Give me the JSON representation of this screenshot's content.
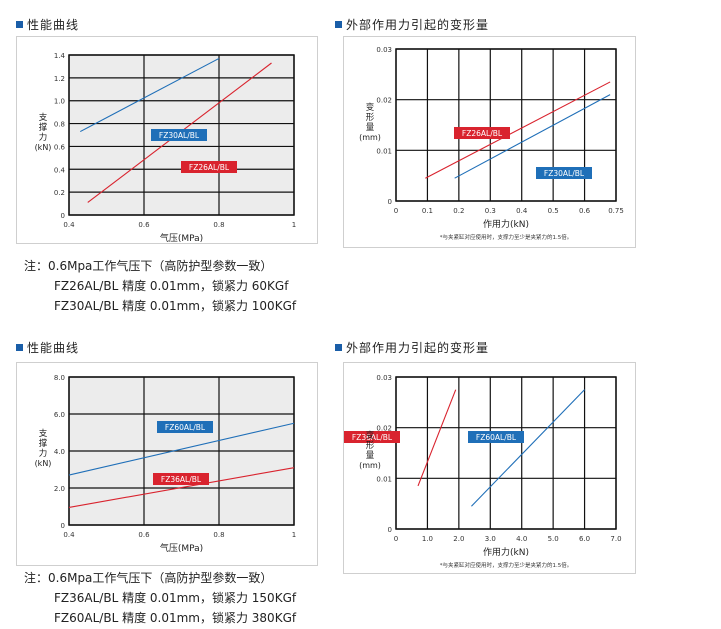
{
  "sections": {
    "s1_title": "性能曲线",
    "s2_title": "外部作用力引起的变形量",
    "s3_title": "性能曲线",
    "s4_title": "外部作用力引起的变形量"
  },
  "notes": {
    "top": {
      "line1": "注：0.6Mpa工作气压下（高防护型参数一致）",
      "line2": "FZ26AL/BL 精度 0.01mm，锁紧力 60KGf",
      "line3": "FZ30AL/BL 精度 0.01mm，锁紧力 100KGf"
    },
    "bottom": {
      "line1": "注：0.6Mpa工作气压下（高防护型参数一致）",
      "line2": "FZ36AL/BL 精度 0.01mm，锁紧力 150KGf",
      "line3": "FZ60AL/BL 精度 0.01mm，锁紧力 380KGf"
    }
  },
  "colors": {
    "blue": "#1f6fb8",
    "red": "#d9232e",
    "accent": "#1a5ea8",
    "grid": "#111111",
    "shade": "#ececec"
  },
  "chart_data": [
    {
      "type": "line",
      "xlabel": "气压(MPa)",
      "ylabel": "支撑力(kN)",
      "xticks": [
        "0.4",
        "0.6",
        "0.8",
        "1"
      ],
      "yticks": [
        "0",
        "0.2",
        "0.4",
        "0.6",
        "0.8",
        "1.0",
        "1.2",
        "1.4"
      ],
      "xlim": [
        0.4,
        1.0
      ],
      "ylim": [
        0,
        1.4
      ],
      "grid": true,
      "series": [
        {
          "name": "FZ30AL/BL",
          "color": "blue",
          "x": [
            0.43,
            0.8
          ],
          "y": [
            0.73,
            1.37
          ]
        },
        {
          "name": "FZ26AL/BL",
          "color": "red",
          "x": [
            0.45,
            0.94
          ],
          "y": [
            0.11,
            1.33
          ]
        }
      ]
    },
    {
      "type": "line",
      "xlabel": "作用力(kN)",
      "ylabel": "变形量(mm)",
      "xticks": [
        "0",
        "0.1",
        "0.2",
        "0.3",
        "0.4",
        "0.5",
        "0.6",
        "0.75"
      ],
      "yticks": [
        "0",
        "0.01",
        "0.02",
        "0.03"
      ],
      "xlim": [
        0,
        0.75
      ],
      "ylim": [
        0,
        0.03
      ],
      "grid": true,
      "footnote": "*与夹紧缸对应使用时，支撑力至少是夹紧力的1.5倍。",
      "series": [
        {
          "name": "FZ26AL/BL",
          "color": "red",
          "x": [
            0.1,
            0.73
          ],
          "y": [
            0.0045,
            0.0235
          ]
        },
        {
          "name": "FZ30AL/BL",
          "color": "blue",
          "x": [
            0.2,
            0.73
          ],
          "y": [
            0.0045,
            0.021
          ]
        }
      ]
    },
    {
      "type": "line",
      "xlabel": "气压(MPa)",
      "ylabel": "支撑力(kN)",
      "xticks": [
        "0.4",
        "0.6",
        "0.8",
        "1"
      ],
      "yticks": [
        "0",
        "2.0",
        "4.0",
        "6.0",
        "8.0"
      ],
      "xlim": [
        0.4,
        1.0
      ],
      "ylim": [
        0,
        8.0
      ],
      "grid": true,
      "series": [
        {
          "name": "FZ60AL/BL",
          "color": "blue",
          "x": [
            0.4,
            1.0
          ],
          "y": [
            2.7,
            5.5
          ]
        },
        {
          "name": "FZ36AL/BL",
          "color": "red",
          "x": [
            0.4,
            1.0
          ],
          "y": [
            0.95,
            3.1
          ]
        }
      ]
    },
    {
      "type": "line",
      "xlabel": "作用力(kN)",
      "ylabel": "变形量(mm)",
      "xticks": [
        "0",
        "1.0",
        "2.0",
        "3.0",
        "4.0",
        "5.0",
        "6.0",
        "7.0"
      ],
      "yticks": [
        "0",
        "0.01",
        "0.02",
        "0.03"
      ],
      "xlim": [
        0,
        7.0
      ],
      "ylim": [
        0,
        0.03
      ],
      "grid": true,
      "footnote": "*与夹紧缸对应使用时，支撑力至少是夹紧力的1.5倍。",
      "series": [
        {
          "name": "FZ36AL/BL",
          "color": "red",
          "x": [
            0.7,
            1.9
          ],
          "y": [
            0.0085,
            0.0275
          ]
        },
        {
          "name": "FZ60AL/BL",
          "color": "blue",
          "x": [
            2.4,
            6.0
          ],
          "y": [
            0.0045,
            0.0275
          ]
        }
      ]
    }
  ]
}
